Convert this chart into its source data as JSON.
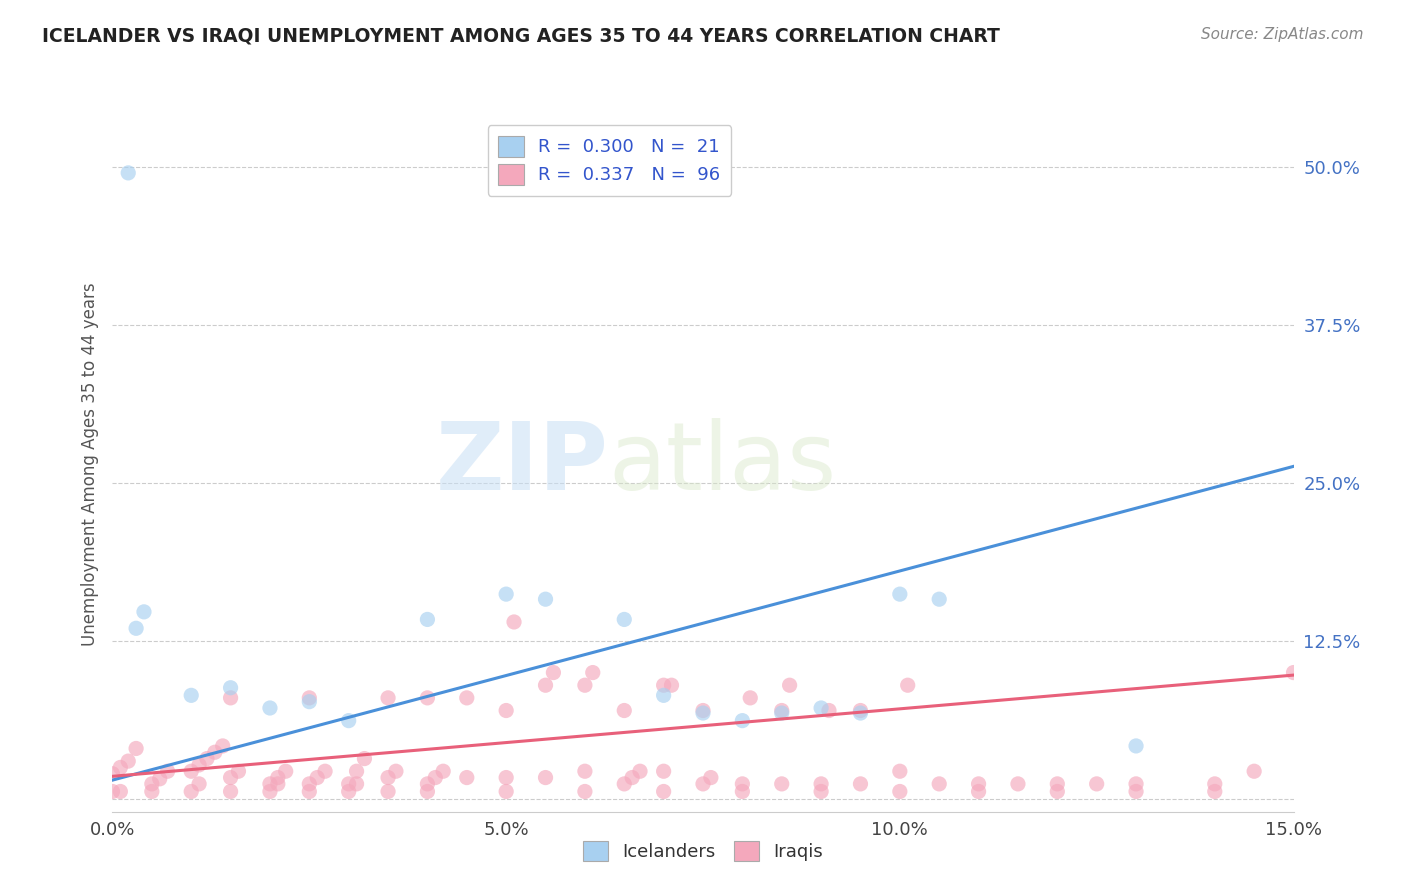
{
  "title": "ICELANDER VS IRAQI UNEMPLOYMENT AMONG AGES 35 TO 44 YEARS CORRELATION CHART",
  "source": "Source: ZipAtlas.com",
  "ylabel": "Unemployment Among Ages 35 to 44 years",
  "xlim": [
    0.0,
    0.15
  ],
  "ylim": [
    -0.01,
    0.54
  ],
  "xticks": [
    0.0,
    0.05,
    0.1,
    0.15
  ],
  "xtick_labels": [
    "0.0%",
    "5.0%",
    "10.0%",
    "15.0%"
  ],
  "yticks": [
    0.0,
    0.125,
    0.25,
    0.375,
    0.5
  ],
  "ytick_labels": [
    "",
    "12.5%",
    "25.0%",
    "37.5%",
    "50.0%"
  ],
  "icelander_color": "#a8d0f0",
  "iraqi_color": "#f4a8bc",
  "icelander_line_color": "#4a90d9",
  "iraqi_line_color": "#e8607a",
  "legend_R_icelander": "0.300",
  "legend_N_icelander": "21",
  "legend_R_iraqi": "0.337",
  "legend_N_iraqi": "96",
  "watermark_zip": "ZIP",
  "watermark_atlas": "atlas",
  "background_color": "#ffffff",
  "icelander_scatter_x": [
    0.002,
    0.003,
    0.004,
    0.01,
    0.015,
    0.02,
    0.025,
    0.03,
    0.04,
    0.05,
    0.055,
    0.065,
    0.07,
    0.075,
    0.08,
    0.085,
    0.09,
    0.095,
    0.1,
    0.105,
    0.13
  ],
  "icelander_scatter_y": [
    0.495,
    0.135,
    0.148,
    0.082,
    0.088,
    0.072,
    0.077,
    0.062,
    0.142,
    0.162,
    0.158,
    0.142,
    0.082,
    0.068,
    0.062,
    0.068,
    0.072,
    0.068,
    0.162,
    0.158,
    0.042
  ],
  "iraqi_scatter_x": [
    0.0,
    0.001,
    0.002,
    0.003,
    0.005,
    0.006,
    0.007,
    0.01,
    0.011,
    0.012,
    0.013,
    0.014,
    0.015,
    0.016,
    0.02,
    0.021,
    0.022,
    0.025,
    0.026,
    0.027,
    0.03,
    0.031,
    0.032,
    0.035,
    0.036,
    0.04,
    0.041,
    0.042,
    0.045,
    0.05,
    0.051,
    0.055,
    0.056,
    0.06,
    0.061,
    0.065,
    0.066,
    0.067,
    0.07,
    0.071,
    0.075,
    0.076,
    0.08,
    0.081,
    0.085,
    0.086,
    0.09,
    0.091,
    0.095,
    0.1,
    0.101,
    0.105,
    0.11,
    0.115,
    0.12,
    0.125,
    0.13,
    0.14,
    0.145,
    0.15,
    0.0,
    0.001,
    0.005,
    0.01,
    0.011,
    0.015,
    0.02,
    0.021,
    0.025,
    0.03,
    0.031,
    0.035,
    0.04,
    0.05,
    0.06,
    0.07,
    0.08,
    0.09,
    0.1,
    0.11,
    0.12,
    0.13,
    0.14,
    0.05,
    0.065,
    0.075,
    0.085,
    0.095,
    0.015,
    0.025,
    0.035,
    0.04,
    0.045,
    0.055,
    0.06,
    0.07
  ],
  "iraqi_scatter_y": [
    0.02,
    0.025,
    0.03,
    0.04,
    0.012,
    0.016,
    0.022,
    0.022,
    0.027,
    0.032,
    0.037,
    0.042,
    0.017,
    0.022,
    0.012,
    0.017,
    0.022,
    0.012,
    0.017,
    0.022,
    0.012,
    0.022,
    0.032,
    0.017,
    0.022,
    0.012,
    0.017,
    0.022,
    0.017,
    0.017,
    0.14,
    0.017,
    0.1,
    0.022,
    0.1,
    0.012,
    0.017,
    0.022,
    0.022,
    0.09,
    0.012,
    0.017,
    0.012,
    0.08,
    0.012,
    0.09,
    0.012,
    0.07,
    0.012,
    0.022,
    0.09,
    0.012,
    0.012,
    0.012,
    0.012,
    0.012,
    0.012,
    0.012,
    0.022,
    0.1,
    0.006,
    0.006,
    0.006,
    0.006,
    0.012,
    0.006,
    0.006,
    0.012,
    0.006,
    0.006,
    0.012,
    0.006,
    0.006,
    0.006,
    0.006,
    0.006,
    0.006,
    0.006,
    0.006,
    0.006,
    0.006,
    0.006,
    0.006,
    0.07,
    0.07,
    0.07,
    0.07,
    0.07,
    0.08,
    0.08,
    0.08,
    0.08,
    0.08,
    0.09,
    0.09,
    0.09
  ],
  "icelander_trend_x": [
    0.0,
    0.15
  ],
  "icelander_trend_y": [
    0.015,
    0.263
  ],
  "iraqi_trend_x": [
    0.0,
    0.15
  ],
  "iraqi_trend_y": [
    0.018,
    0.098
  ]
}
